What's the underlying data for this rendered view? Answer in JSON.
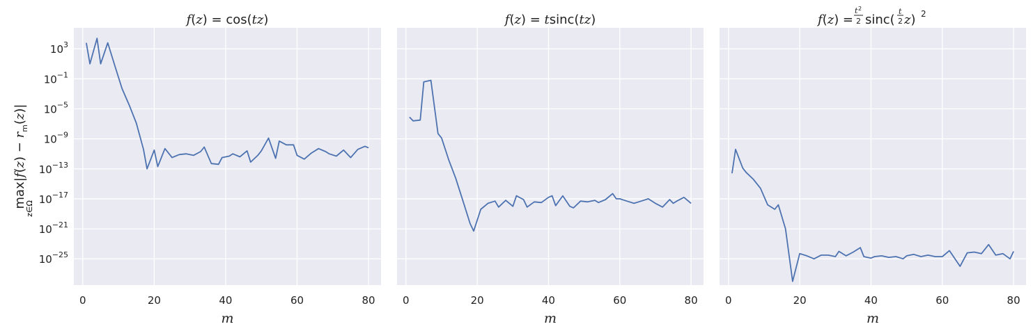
{
  "chart_data": [
    {
      "type": "line",
      "title_parts": [
        "f",
        "(",
        "z",
        ") = cos(",
        "tz",
        ")"
      ],
      "xlabel": "m",
      "ylabel": "max|f(z) − r_m(z)|, z∈Ω",
      "ylabel_parts": {
        "max": "max",
        "sub": "z∈Ω",
        "body": [
          "|",
          "f",
          "(",
          "z",
          ") − ",
          "r",
          "m",
          "(",
          "z",
          ")|"
        ]
      },
      "yscale": "log",
      "xlim": [
        -2.5,
        83.5
      ],
      "ylim_log10": [
        -28.5,
        5.8
      ],
      "xticks": [
        0,
        20,
        40,
        60,
        80
      ],
      "yticks_log10": [
        3,
        -1,
        -5,
        -9,
        -13,
        -17,
        -21,
        -25
      ],
      "grid": true,
      "color": "#4c72b0",
      "series": [
        {
          "x": [
            1,
            2,
            4,
            5,
            7,
            9,
            11,
            13,
            15,
            17,
            18,
            20,
            21,
            23,
            25,
            27,
            29,
            31,
            33,
            34,
            36,
            38,
            39,
            41,
            42,
            44,
            46,
            47,
            49,
            50,
            52,
            54,
            55,
            57,
            59,
            60,
            62,
            64,
            66,
            68,
            69,
            71,
            73,
            75,
            77,
            79,
            80
          ],
          "log10_y": [
            3.8,
            1.0,
            4.4,
            1.0,
            3.8,
            0.7,
            -2.3,
            -4.5,
            -6.9,
            -10.4,
            -13.0,
            -10.5,
            -12.7,
            -10.3,
            -11.5,
            -11.1,
            -11.0,
            -11.2,
            -10.7,
            -10.1,
            -12.3,
            -12.4,
            -11.5,
            -11.3,
            -11.0,
            -11.4,
            -10.6,
            -12.1,
            -11.2,
            -10.6,
            -8.9,
            -11.6,
            -9.3,
            -9.8,
            -9.8,
            -11.2,
            -11.7,
            -10.9,
            -10.3,
            -10.7,
            -11.0,
            -11.3,
            -10.5,
            -11.5,
            -10.4,
            -10.0,
            -10.2
          ]
        }
      ]
    },
    {
      "type": "line",
      "title_parts": [
        "f",
        "(",
        "z",
        ") = ",
        "t",
        "sinc(",
        "tz",
        ")"
      ],
      "xlabel": "m",
      "yscale": "log",
      "xlim": [
        -2.5,
        83.5
      ],
      "ylim_log10": [
        -28.5,
        5.8
      ],
      "xticks": [
        0,
        20,
        40,
        60,
        80
      ],
      "grid": true,
      "color": "#4c72b0",
      "series": [
        {
          "x": [
            1,
            2,
            4,
            5,
            7,
            9,
            10,
            12,
            14,
            16,
            18,
            19,
            21,
            23,
            25,
            26,
            28,
            30,
            31,
            33,
            34,
            36,
            38,
            40,
            41,
            42,
            44,
            46,
            47,
            49,
            51,
            53,
            54,
            56,
            58,
            59,
            60,
            62,
            64,
            66,
            68,
            70,
            72,
            74,
            75,
            76,
            78,
            80
          ],
          "log10_y": [
            -6.1,
            -6.6,
            -6.5,
            -1.4,
            -1.2,
            -8.3,
            -8.9,
            -11.8,
            -14.3,
            -17.3,
            -20.3,
            -21.3,
            -18.4,
            -17.6,
            -17.3,
            -18.1,
            -17.2,
            -18.0,
            -16.6,
            -17.1,
            -18.1,
            -17.4,
            -17.5,
            -16.8,
            -16.6,
            -17.9,
            -16.6,
            -18.0,
            -18.2,
            -17.3,
            -17.4,
            -17.2,
            -17.5,
            -17.1,
            -16.3,
            -17.0,
            -17.0,
            -17.3,
            -17.6,
            -17.3,
            -17.0,
            -17.6,
            -18.1,
            -17.1,
            -17.6,
            -17.3,
            -16.8,
            -17.6
          ]
        }
      ]
    },
    {
      "type": "line",
      "title_parts": [
        "f",
        "(",
        "z",
        ") = ",
        "sinc(",
        ")",
        "2"
      ],
      "title_frac1": [
        "t",
        "2",
        "2"
      ],
      "title_frac2": [
        "t",
        "2"
      ],
      "xlabel": "m",
      "yscale": "log",
      "xlim": [
        -2.5,
        83.5
      ],
      "ylim_log10": [
        -28.5,
        5.8
      ],
      "xticks": [
        0,
        20,
        40,
        60,
        80
      ],
      "grid": true,
      "color": "#4c72b0",
      "series": [
        {
          "x": [
            1,
            2,
            4,
            5,
            7,
            9,
            11,
            13,
            14,
            16,
            18,
            20,
            22,
            24,
            26,
            28,
            30,
            31,
            33,
            35,
            37,
            38,
            40,
            41,
            43,
            45,
            47,
            49,
            50,
            52,
            54,
            56,
            58,
            60,
            62,
            65,
            67,
            69,
            71,
            73,
            75,
            77,
            79,
            80
          ],
          "log10_y": [
            -13.6,
            -10.4,
            -12.9,
            -13.5,
            -14.4,
            -15.6,
            -17.8,
            -18.4,
            -17.8,
            -21.0,
            -28.0,
            -24.3,
            -24.6,
            -25.0,
            -24.5,
            -24.5,
            -24.7,
            -24.0,
            -24.6,
            -24.1,
            -23.5,
            -24.7,
            -24.9,
            -24.7,
            -24.6,
            -24.8,
            -24.7,
            -25.0,
            -24.6,
            -24.4,
            -24.7,
            -24.5,
            -24.7,
            -24.7,
            -23.9,
            -26.0,
            -24.2,
            -24.1,
            -24.3,
            -23.1,
            -24.5,
            -24.3,
            -25.0,
            -24.0
          ]
        }
      ]
    }
  ]
}
